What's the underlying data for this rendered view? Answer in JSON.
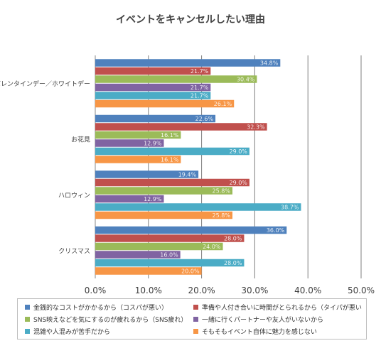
{
  "chart_data": {
    "type": "bar",
    "orientation": "horizontal",
    "title": "イベントをキャンセルしたい理由",
    "categories": [
      "バレンタインデー／ホワイトデー",
      "お花見",
      "ハロウィン",
      "クリスマス"
    ],
    "series": [
      {
        "name": "金銭的なコストがかかるから（コスパが悪い）",
        "color": "#4f81bd",
        "values": [
          34.8,
          22.6,
          19.4,
          36.0
        ],
        "labels": [
          "34.8%",
          "22.6%",
          "19.4%",
          "36.0%"
        ]
      },
      {
        "name": "準備や人付き合いに時間がとられるから（タイパが悪い）",
        "color": "#c0504d",
        "values": [
          21.7,
          32.3,
          29.0,
          28.0
        ],
        "labels": [
          "21.7%",
          "32.3%",
          "29.0%",
          "28.0%"
        ]
      },
      {
        "name": "SNS映えなどを気にするのが疲れるから（SNS疲れ）",
        "color": "#9bbb59",
        "values": [
          30.4,
          16.1,
          25.8,
          24.0
        ],
        "labels": [
          "30.4%",
          "16.1%",
          "25.8%",
          "24.0%"
        ]
      },
      {
        "name": "一緒に行くパートナーや友人がいないから",
        "color": "#8064a2",
        "values": [
          21.7,
          12.9,
          12.9,
          16.0
        ],
        "labels": [
          "21.7%",
          "12.9%",
          "12.9%",
          "16.0%"
        ]
      },
      {
        "name": "混雑や人混みが苦手だから",
        "color": "#4bacc6",
        "values": [
          21.7,
          29.0,
          38.7,
          28.0
        ],
        "labels": [
          "21.7%",
          "29.0%",
          "38.7%",
          "28.0%"
        ]
      },
      {
        "name": "そもそもイベント自体に魅力を感じない",
        "color": "#f79646",
        "values": [
          26.1,
          16.1,
          25.8,
          20.0
        ],
        "labels": [
          "26.1%",
          "16.1%",
          "25.8%",
          "20.0%"
        ]
      }
    ],
    "xlim": [
      0,
      50
    ],
    "xticks": [
      "0.0%",
      "10.0%",
      "20.0%",
      "30.0%",
      "40.0%",
      "50.0%"
    ],
    "grid": "vertical",
    "legend_position": "bottom"
  }
}
